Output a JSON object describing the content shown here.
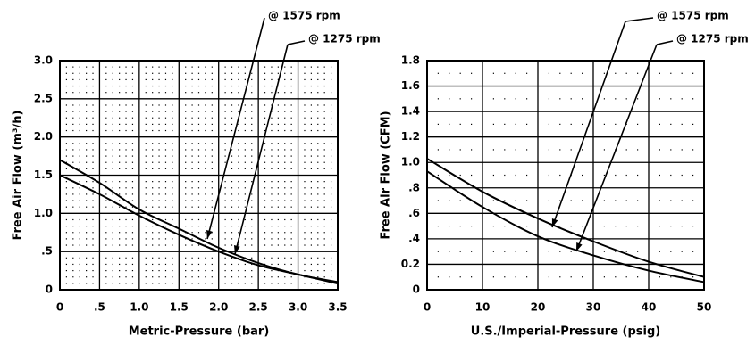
{
  "chart_data": [
    {
      "type": "line",
      "x_label": "Metric-Pressure (bar)",
      "y_label": "Free Air Flow (m³/h)",
      "x": [
        0,
        0.5,
        1.0,
        1.5,
        2.0,
        2.5,
        3.0,
        3.5
      ],
      "series": [
        {
          "name": "@ 1575 rpm",
          "color": "#000000",
          "values": [
            1.7,
            1.4,
            1.05,
            0.8,
            0.55,
            0.35,
            0.2,
            0.1
          ]
        },
        {
          "name": "@ 1275 rpm",
          "color": "#000000",
          "values": [
            1.5,
            1.25,
            0.97,
            0.72,
            0.5,
            0.32,
            0.2,
            0.08
          ]
        }
      ],
      "xlim": [
        0,
        3.5
      ],
      "xticks": [
        0,
        {
          "value": 0.5,
          "label": ".5"
        },
        {
          "value": 1.0,
          "label": "1.0"
        },
        1.5,
        {
          "value": 2.0,
          "label": "2.0"
        },
        2.5,
        {
          "value": 3.0,
          "label": "3.0"
        },
        3.5
      ],
      "ylim": [
        0,
        3.0
      ],
      "yticks": [
        0,
        {
          "value": 0.5,
          "label": ".5"
        },
        {
          "value": 1.0,
          "label": "1.0"
        },
        1.5,
        {
          "value": 2.0,
          "label": "2.0"
        },
        2.5,
        {
          "value": 3.0,
          "label": "3.0"
        }
      ],
      "grid": true
    },
    {
      "type": "line",
      "x_label": "U.S./Imperial-Pressure (psig)",
      "y_label": "Free Air Flow (CFM)",
      "x": [
        0,
        10,
        20,
        30,
        40,
        50
      ],
      "series": [
        {
          "name": "@ 1575 rpm",
          "color": "#000000",
          "values": [
            1.03,
            0.77,
            0.56,
            0.38,
            0.22,
            0.1
          ]
        },
        {
          "name": "@ 1275 rpm",
          "color": "#000000",
          "values": [
            0.93,
            0.65,
            0.42,
            0.27,
            0.15,
            0.06
          ]
        }
      ],
      "xlim": [
        0,
        50
      ],
      "xticks": [
        0,
        10,
        20,
        30,
        40,
        50
      ],
      "ylim": [
        0,
        1.8
      ],
      "yticks": [
        0,
        0.2,
        {
          "value": 0.4,
          "label": ".4"
        },
        {
          "value": 0.6,
          "label": ".6"
        },
        {
          "value": 0.8,
          "label": ".8"
        },
        {
          "value": 1.0,
          "label": "1.0"
        },
        1.2,
        1.4,
        1.6,
        1.8
      ],
      "grid": true
    }
  ]
}
